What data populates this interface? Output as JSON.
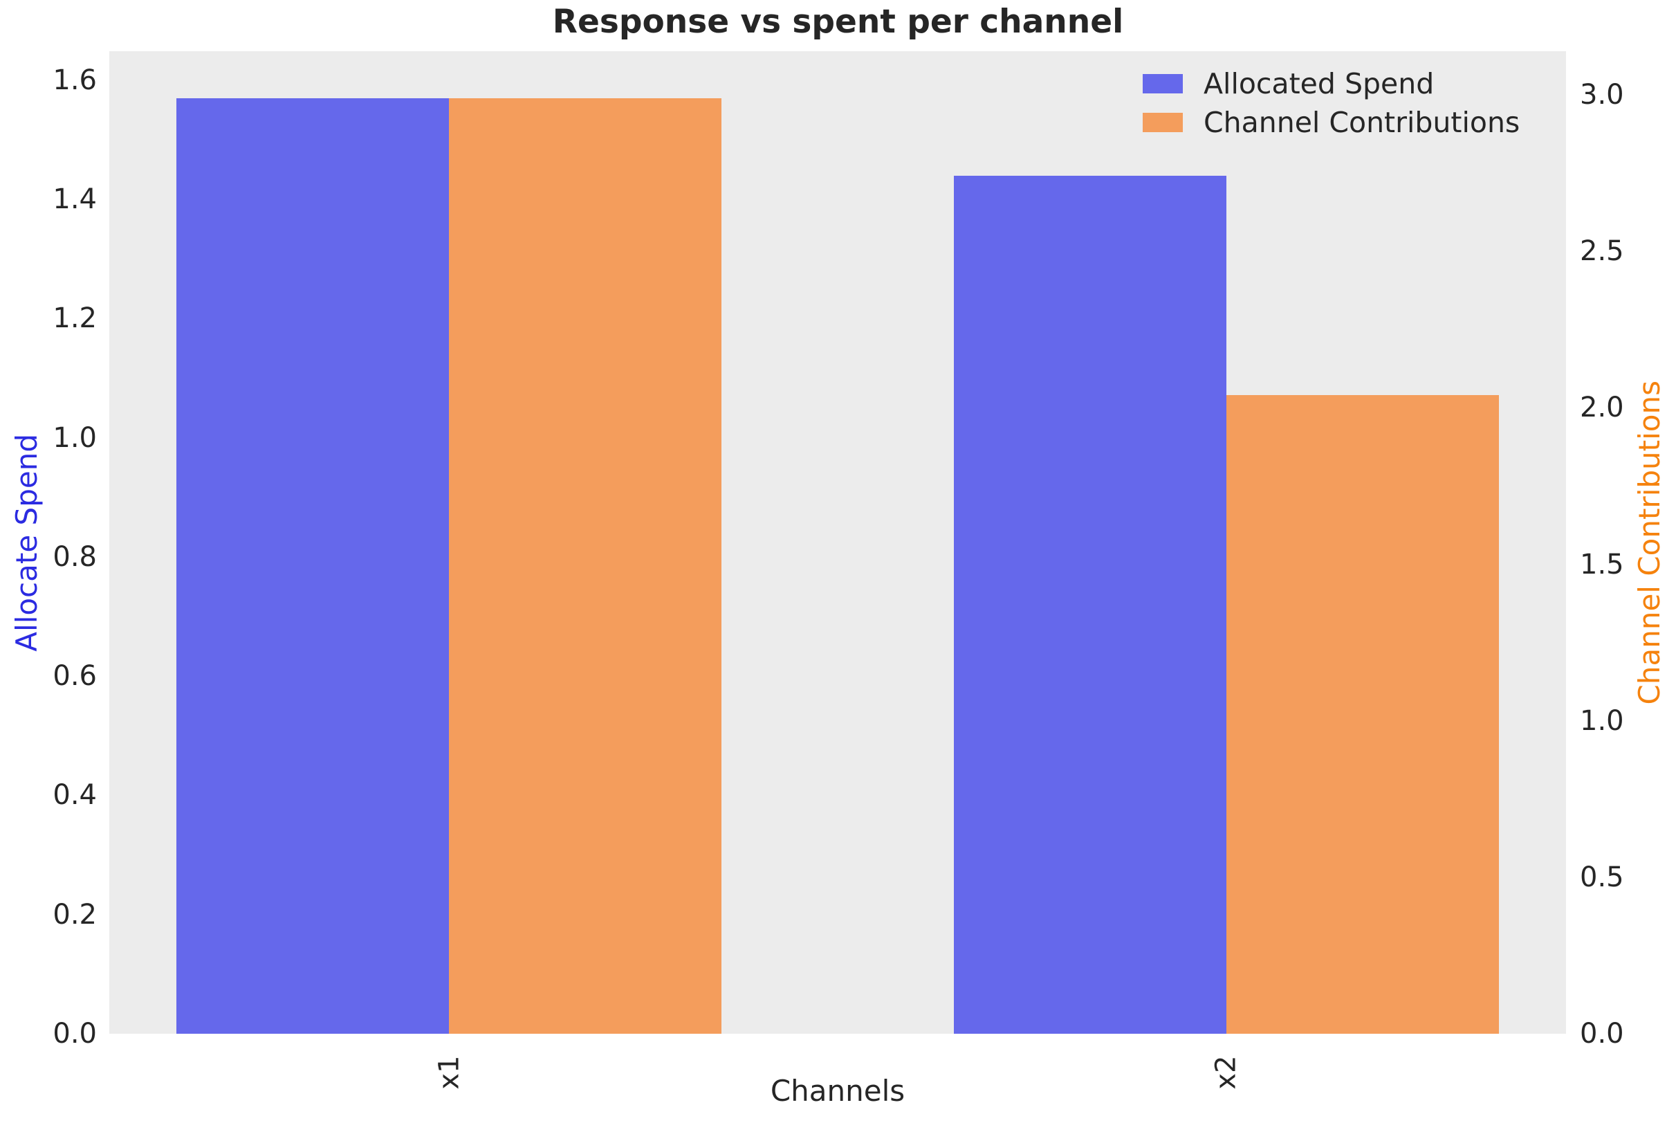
{
  "chart_data": {
    "type": "bar",
    "title": "Response vs spent per channel",
    "xlabel": "Channels",
    "categories": [
      "x1",
      "x2"
    ],
    "series": [
      {
        "name": "Allocated Spend",
        "axis": "left",
        "color": "#6568eb",
        "values": [
          1.57,
          1.44
        ]
      },
      {
        "name": "Channel Contributions",
        "axis": "right",
        "color": "#f49d5c",
        "values": [
          2.99,
          2.04
        ]
      }
    ],
    "axes": {
      "left": {
        "label": "Allocate Spend",
        "label_color": "#2b2be1",
        "ticks": [
          0.0,
          0.2,
          0.4,
          0.6,
          0.8,
          1.0,
          1.2,
          1.4,
          1.6
        ],
        "range": [
          0,
          1.6485
        ]
      },
      "right": {
        "label": "Channel Contributions",
        "label_color": "#f5820d",
        "ticks": [
          0.0,
          0.5,
          1.0,
          1.5,
          2.0,
          2.5,
          3.0
        ],
        "range": [
          0,
          3.1395
        ]
      }
    },
    "legend": {
      "position": "upper right",
      "entries": [
        "Allocated Spend",
        "Channel Contributions"
      ]
    },
    "grid": false,
    "plot_background": "#ececec",
    "tick_label_format": "one-decimal"
  }
}
